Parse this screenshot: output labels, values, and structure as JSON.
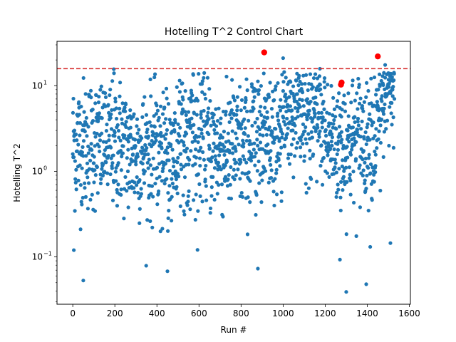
{
  "chart_data": {
    "type": "scatter",
    "title": "Hotelling T^2 Control Chart",
    "xlabel": "Run #",
    "ylabel": "Hotelling T^2",
    "xlim": [
      -75,
      1605
    ],
    "ylim": [
      0.028,
      33
    ],
    "y_scale": "log",
    "x_ticks": [
      0,
      200,
      400,
      600,
      800,
      1000,
      1200,
      1400,
      1600
    ],
    "y_ticks": [
      0.1,
      1,
      10
    ],
    "y_tick_labels": [
      {
        "base": "10",
        "exp": "−1"
      },
      {
        "base": "10",
        "exp": "0"
      },
      {
        "base": "10",
        "exp": "1"
      }
    ],
    "grid": false,
    "colors": {
      "points": "#1f77b4",
      "outliers": "#ff0000",
      "limit": "#d62728"
    },
    "control_limit": 15.8,
    "n_points": 1530,
    "outliers": [
      {
        "x": 910,
        "y": 24.5
      },
      {
        "x": 1275,
        "y": 10.3
      },
      {
        "x": 1278,
        "y": 10.9
      },
      {
        "x": 1450,
        "y": 22.0
      }
    ],
    "notable_points": [
      {
        "x": 50,
        "y": 0.053
      },
      {
        "x": 450,
        "y": 0.068
      },
      {
        "x": 880,
        "y": 0.073
      },
      {
        "x": 1270,
        "y": 0.093
      },
      {
        "x": 1300,
        "y": 0.039
      },
      {
        "x": 1395,
        "y": 0.048
      },
      {
        "x": 1000,
        "y": 21.0
      },
      {
        "x": 1175,
        "y": 15.8
      },
      {
        "x": 195,
        "y": 15.6
      },
      {
        "x": 1485,
        "y": 17.5
      },
      {
        "x": 5,
        "y": 0.12
      },
      {
        "x": 1510,
        "y": 0.145
      }
    ]
  }
}
